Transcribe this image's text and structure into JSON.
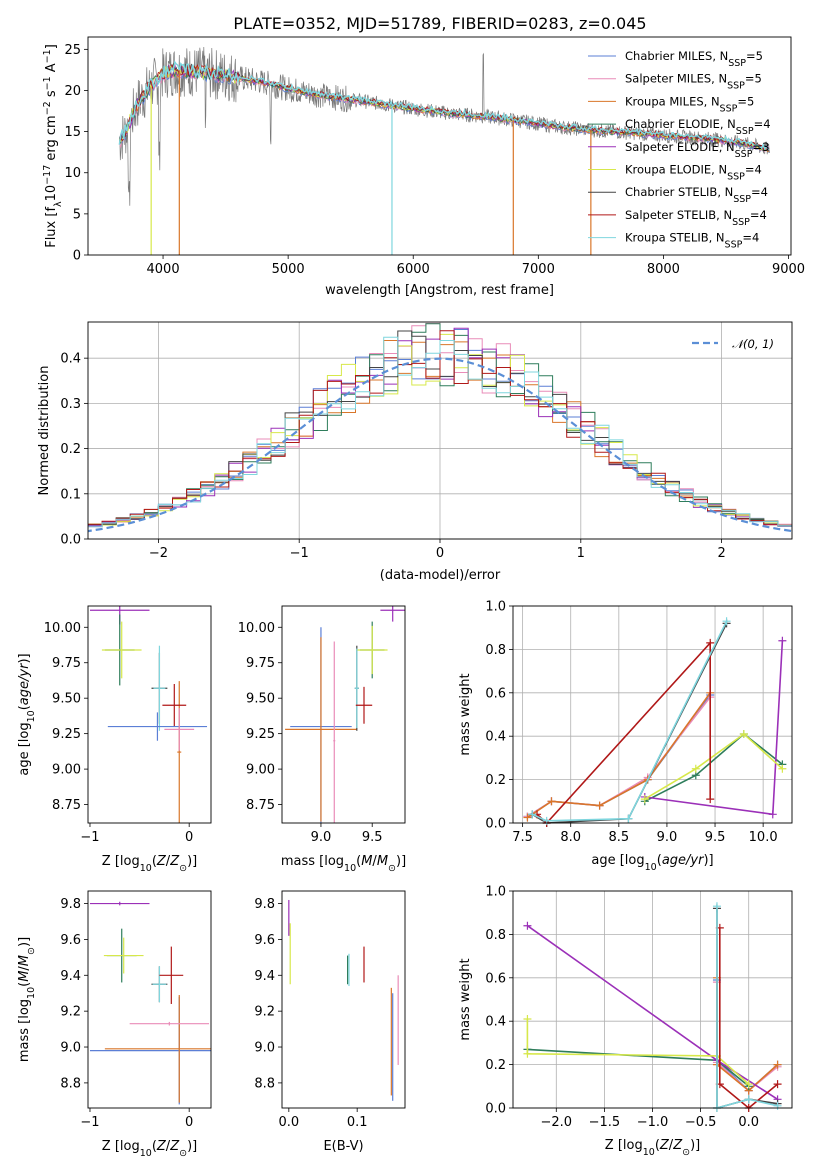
{
  "title": "PLATE=0352, MJD=51789, FIBERID=0283, z=0.045",
  "colors": {
    "chabrier_miles": "#5b7fd6",
    "salpeter_miles": "#e98cb8",
    "kroupa_miles": "#d9762a",
    "chabrier_elodie": "#2e7d5b",
    "salpeter_elodie": "#9b30b8",
    "kroupa_elodie": "#d7e84a",
    "chabrier_stelib": "#444444",
    "salpeter_stelib": "#b01818",
    "kroupa_stelib": "#7fd6de",
    "norm": "#5b8fd6"
  },
  "chart_data": [
    {
      "id": "spectrum",
      "type": "line",
      "xlabel": "wavelength [Angstrom, rest frame]",
      "ylabel_parts": [
        "Flux [f",
        "λ",
        "10",
        "−17",
        " erg cm",
        "−2",
        " s",
        "−1",
        " A",
        "−1",
        "]"
      ],
      "xlim": [
        3400,
        9020
      ],
      "ylim": [
        0,
        26.5
      ],
      "xticks": [
        4000,
        5000,
        6000,
        7000,
        8000,
        9000
      ],
      "yticks": [
        0,
        5,
        10,
        15,
        20,
        25
      ],
      "legend_position": "top-right",
      "continuum_x": [
        3650,
        3700,
        3800,
        3900,
        4000,
        4100,
        4300,
        4500,
        4800,
        5000,
        5300,
        5600,
        6000,
        6300,
        6600,
        6900,
        7200,
        7500,
        7800,
        8100,
        8400,
        8700,
        8850
      ],
      "continuum_y": [
        13.8,
        15.0,
        18.5,
        20.5,
        22.0,
        22.5,
        22.2,
        21.8,
        21.0,
        20.2,
        19.3,
        18.7,
        17.8,
        17.2,
        16.8,
        16.2,
        15.5,
        15.1,
        14.8,
        14.4,
        14.1,
        13.4,
        12.8
      ],
      "series": [
        {
          "legend": [
            "Chabrier MILES, N",
            "SSP",
            "=5"
          ],
          "color_key": "chabrier_miles"
        },
        {
          "legend": [
            "Salpeter MILES, N",
            "SSP",
            "=5"
          ],
          "color_key": "salpeter_miles"
        },
        {
          "legend": [
            "Kroupa MILES, N",
            "SSP",
            "=5"
          ],
          "color_key": "kroupa_miles"
        },
        {
          "legend": [
            "Chabrier ELODIE, N",
            "SSP",
            "=4"
          ],
          "color_key": "chabrier_elodie"
        },
        {
          "legend": [
            "Salpeter ELODIE, N",
            "SSP",
            "=3"
          ],
          "color_key": "salpeter_elodie"
        },
        {
          "legend": [
            "Kroupa ELODIE, N",
            "SSP",
            "=4"
          ],
          "color_key": "kroupa_elodie"
        },
        {
          "legend": [
            "Chabrier STELIB, N",
            "SSP",
            "=4"
          ],
          "color_key": "chabrier_stelib"
        },
        {
          "legend": [
            "Salpeter STELIB, N",
            "SSP",
            "=4"
          ],
          "color_key": "salpeter_stelib"
        },
        {
          "legend": [
            "Kroupa STELIB, N",
            "SSP",
            "=4"
          ],
          "color_key": "kroupa_stelib"
        }
      ],
      "drops": [
        {
          "x": 3905,
          "color_key": "kroupa_elodie"
        },
        {
          "x": 4130,
          "color_key": "kroupa_miles"
        },
        {
          "x": 5830,
          "color_key": "kroupa_stelib"
        },
        {
          "x": 6800,
          "color_key": "kroupa_miles"
        },
        {
          "x": 7420,
          "color_key": "kroupa_miles"
        }
      ]
    },
    {
      "id": "residuals",
      "type": "line",
      "xlabel": "(data-model)/error",
      "ylabel": "Normed distribution",
      "xlim": [
        -2.5,
        2.5
      ],
      "ylim": [
        0,
        0.48
      ],
      "xticks": [
        -2,
        -1,
        0,
        1,
        2
      ],
      "yticks": [
        0.0,
        0.1,
        0.2,
        0.3,
        0.4
      ],
      "grid": true,
      "legend_position": "top-right",
      "legend_label": "𝒩(0, 1)",
      "bin_width": 0.1,
      "histogram_color_keys": [
        "chabrier_miles",
        "salpeter_miles",
        "kroupa_miles",
        "chabrier_elodie",
        "salpeter_elodie",
        "kroupa_elodie",
        "chabrier_stelib",
        "salpeter_stelib",
        "kroupa_stelib"
      ]
    },
    {
      "id": "age_vs_Z",
      "type": "scatter",
      "xlabel": "Z [log10(Z/Z⊙)]",
      "ylabel": "age [log10(age/yr)]",
      "xlim": [
        -1.02,
        0.22
      ],
      "ylim": [
        8.62,
        10.15
      ],
      "xticks": [
        -1,
        0
      ],
      "yticks": [
        8.75,
        9.0,
        9.25,
        9.5,
        9.75,
        10.0
      ],
      "points": [
        {
          "x": -0.7,
          "y": 10.12,
          "xerr": 0.3,
          "yerr": 0.1,
          "color_key": "salpeter_elodie"
        },
        {
          "x": -0.1,
          "y": 9.12,
          "xerr": 0.02,
          "yerr": 0.5,
          "color_key": "kroupa_miles"
        },
        {
          "x": -0.7,
          "y": 9.84,
          "xerr": 0.15,
          "yerr": 0.25,
          "color_key": "chabrier_elodie"
        },
        {
          "x": -0.68,
          "y": 9.84,
          "xerr": 0.2,
          "yerr": 0.2,
          "color_key": "kroupa_elodie"
        },
        {
          "x": -0.3,
          "y": 9.57,
          "xerr": 0.08,
          "yerr": 0.25,
          "color_key": "chabrier_stelib"
        },
        {
          "x": -0.3,
          "y": 9.57,
          "xerr": 0.06,
          "yerr": 0.3,
          "color_key": "kroupa_stelib"
        },
        {
          "x": -0.15,
          "y": 9.45,
          "xerr": 0.12,
          "yerr": 0.15,
          "color_key": "salpeter_stelib"
        },
        {
          "x": -0.32,
          "y": 9.3,
          "xerr": 0.5,
          "yerr": 0.1,
          "color_key": "chabrier_miles"
        },
        {
          "x": -0.1,
          "y": 9.28,
          "xerr": 0.15,
          "yerr": 0.15,
          "color_key": "salpeter_miles"
        }
      ]
    },
    {
      "id": "age_vs_mass",
      "type": "scatter",
      "xlabel": "mass [log10(M/M⊙)]",
      "ylabel": "",
      "xlim": [
        8.62,
        9.82
      ],
      "ylim": [
        8.62,
        10.15
      ],
      "xticks": [
        9.0,
        9.5
      ],
      "yticks": [
        8.75,
        9.0,
        9.25,
        9.5,
        9.75,
        10.0
      ],
      "points": [
        {
          "x": 9.7,
          "y": 10.12,
          "xerr": 0.12,
          "yerr": 0.08,
          "color_key": "salpeter_elodie"
        },
        {
          "x": 9.0,
          "y": 9.3,
          "xerr": 0.3,
          "yerr": 0.7,
          "color_key": "chabrier_miles"
        },
        {
          "x": 9.0,
          "y": 9.28,
          "xerr": 0.35,
          "yerr": 0.65,
          "color_key": "kroupa_miles"
        },
        {
          "x": 9.13,
          "y": 9.2,
          "xerr": 0.01,
          "yerr": 0.7,
          "color_key": "salpeter_miles"
        },
        {
          "x": 9.5,
          "y": 9.84,
          "xerr": 0.12,
          "yerr": 0.2,
          "color_key": "chabrier_elodie"
        },
        {
          "x": 9.5,
          "y": 9.84,
          "xerr": 0.15,
          "yerr": 0.17,
          "color_key": "kroupa_elodie"
        },
        {
          "x": 9.35,
          "y": 9.57,
          "xerr": 0.02,
          "yerr": 0.3,
          "color_key": "chabrier_stelib"
        },
        {
          "x": 9.35,
          "y": 9.57,
          "xerr": 0.02,
          "yerr": 0.28,
          "color_key": "kroupa_stelib"
        },
        {
          "x": 9.42,
          "y": 9.45,
          "xerr": 0.08,
          "yerr": 0.13,
          "color_key": "salpeter_stelib"
        }
      ]
    },
    {
      "id": "weight_vs_age",
      "type": "line",
      "xlabel": "age [log10(age/yr)]",
      "ylabel": "mass weight",
      "xlim": [
        7.4,
        10.3
      ],
      "ylim": [
        0,
        1.0
      ],
      "xticks": [
        7.5,
        8.0,
        8.5,
        9.0,
        9.5,
        10.0
      ],
      "yticks": [
        0.0,
        0.2,
        0.4,
        0.6,
        0.8,
        1.0
      ],
      "grid": true,
      "series": [
        {
          "color_key": "chabrier_miles",
          "x": [
            7.55,
            7.8,
            8.3,
            8.8,
            9.45
          ],
          "y": [
            0.03,
            0.1,
            0.08,
            0.2,
            0.59
          ]
        },
        {
          "color_key": "salpeter_miles",
          "x": [
            7.55,
            7.8,
            8.3,
            8.8,
            9.45
          ],
          "y": [
            0.03,
            0.1,
            0.08,
            0.21,
            0.58
          ]
        },
        {
          "color_key": "kroupa_miles",
          "x": [
            7.55,
            7.8,
            8.3,
            8.8,
            9.45
          ],
          "y": [
            0.025,
            0.1,
            0.08,
            0.2,
            0.6
          ]
        },
        {
          "color_key": "chabrier_elodie",
          "x": [
            8.77,
            9.3,
            9.8,
            10.2
          ],
          "y": [
            0.1,
            0.22,
            0.41,
            0.27
          ]
        },
        {
          "color_key": "salpeter_elodie",
          "x": [
            8.77,
            10.1,
            10.2
          ],
          "y": [
            0.12,
            0.04,
            0.84
          ]
        },
        {
          "color_key": "kroupa_elodie",
          "x": [
            8.77,
            9.3,
            9.8,
            10.2
          ],
          "y": [
            0.11,
            0.25,
            0.41,
            0.25
          ]
        },
        {
          "color_key": "chabrier_stelib",
          "x": [
            7.6,
            7.75,
            8.6,
            9.62
          ],
          "y": [
            0.04,
            0.0,
            0.02,
            0.92
          ]
        },
        {
          "color_key": "salpeter_stelib",
          "x": [
            7.65,
            7.75,
            9.45,
            9.45
          ],
          "y": [
            0.04,
            0.0,
            0.83,
            0.11
          ]
        },
        {
          "color_key": "kroupa_stelib",
          "x": [
            7.6,
            7.75,
            8.6,
            9.62
          ],
          "y": [
            0.04,
            0.01,
            0.02,
            0.93
          ]
        }
      ]
    },
    {
      "id": "mass_vs_Z",
      "type": "scatter",
      "xlabel": "Z [log10(Z/Z⊙)]",
      "ylabel": "mass [log10(M/M⊙)]",
      "xlim": [
        -1.02,
        0.22
      ],
      "ylim": [
        8.66,
        9.87
      ],
      "xticks": [
        -1,
        0
      ],
      "yticks": [
        8.8,
        9.0,
        9.2,
        9.4,
        9.6,
        9.8
      ],
      "points": [
        {
          "x": -0.7,
          "y": 9.8,
          "xerr": 0.3,
          "yerr": 0.01,
          "color_key": "salpeter_elodie"
        },
        {
          "x": -0.68,
          "y": 9.51,
          "xerr": 0.15,
          "yerr": 0.15,
          "color_key": "chabrier_elodie"
        },
        {
          "x": -0.66,
          "y": 9.51,
          "xerr": 0.2,
          "yerr": 0.1,
          "color_key": "kroupa_elodie"
        },
        {
          "x": -0.3,
          "y": 9.35,
          "xerr": 0.08,
          "yerr": 0.1,
          "color_key": "chabrier_stelib"
        },
        {
          "x": -0.3,
          "y": 9.35,
          "xerr": 0.07,
          "yerr": 0.1,
          "color_key": "kroupa_stelib"
        },
        {
          "x": -0.18,
          "y": 9.4,
          "xerr": 0.12,
          "yerr": 0.16,
          "color_key": "salpeter_stelib"
        },
        {
          "x": -0.1,
          "y": 8.98,
          "xerr": 0.9,
          "yerr": 0.3,
          "color_key": "chabrier_miles"
        },
        {
          "x": -0.1,
          "y": 8.99,
          "xerr": 0.75,
          "yerr": 0.3,
          "color_key": "kroupa_miles"
        },
        {
          "x": -0.2,
          "y": 9.13,
          "xerr": 0.4,
          "yerr": 0.01,
          "color_key": "salpeter_miles"
        }
      ]
    },
    {
      "id": "mass_vs_ebv",
      "type": "scatter",
      "xlabel": "E(B-V)",
      "ylabel": "",
      "xlim": [
        -0.01,
        0.17
      ],
      "ylim": [
        8.66,
        9.87
      ],
      "xticks": [
        0.0,
        0.1
      ],
      "yticks": [
        8.8,
        9.0,
        9.2,
        9.4,
        9.6,
        9.8
      ],
      "points": [
        {
          "x": 0.0,
          "y": 9.72,
          "xerr": 0.0,
          "yerr": 0.1,
          "color_key": "salpeter_elodie"
        },
        {
          "x": 0.002,
          "y": 9.52,
          "xerr": 0.0,
          "yerr": 0.17,
          "color_key": "kroupa_elodie"
        },
        {
          "x": 0.086,
          "y": 9.43,
          "xerr": 0.0,
          "yerr": 0.08,
          "color_key": "chabrier_elodie"
        },
        {
          "x": 0.088,
          "y": 9.43,
          "xerr": 0.0,
          "yerr": 0.09,
          "color_key": "kroupa_stelib"
        },
        {
          "x": 0.11,
          "y": 9.46,
          "xerr": 0.0,
          "yerr": 0.1,
          "color_key": "salpeter_stelib"
        },
        {
          "x": 0.15,
          "y": 9.03,
          "xerr": 0.0,
          "yerr": 0.3,
          "color_key": "kroupa_miles"
        },
        {
          "x": 0.152,
          "y": 9.0,
          "xerr": 0.0,
          "yerr": 0.3,
          "color_key": "chabrier_miles"
        },
        {
          "x": 0.16,
          "y": 9.15,
          "xerr": 0.0,
          "yerr": 0.25,
          "color_key": "salpeter_miles"
        }
      ]
    },
    {
      "id": "weight_vs_Z",
      "type": "line",
      "xlabel": "Z [log10(Z/Z⊙)]",
      "ylabel": "mass weight",
      "xlim": [
        -2.45,
        0.45
      ],
      "ylim": [
        0,
        1.0
      ],
      "xticks": [
        -2.0,
        -1.5,
        -1.0,
        -0.5,
        0.0
      ],
      "yticks": [
        0.0,
        0.2,
        0.4,
        0.6,
        0.8,
        1.0
      ],
      "grid": true,
      "series": [
        {
          "color_key": "chabrier_miles",
          "x": [
            -0.33,
            -0.33,
            0.0,
            0.3
          ],
          "y": [
            0.59,
            0.22,
            0.08,
            0.2
          ]
        },
        {
          "color_key": "salpeter_miles",
          "x": [
            -0.33,
            -0.33,
            0.0,
            0.3
          ],
          "y": [
            0.58,
            0.21,
            0.08,
            0.19
          ]
        },
        {
          "color_key": "kroupa_miles",
          "x": [
            -0.33,
            -0.33,
            0.0,
            0.3
          ],
          "y": [
            0.6,
            0.2,
            0.08,
            0.2
          ]
        },
        {
          "color_key": "chabrier_elodie",
          "x": [
            -2.3,
            -0.33,
            0.0
          ],
          "y": [
            0.27,
            0.22,
            0.1
          ]
        },
        {
          "color_key": "salpeter_elodie",
          "x": [
            -2.3,
            -0.33,
            0.3
          ],
          "y": [
            0.84,
            0.22,
            0.04
          ]
        },
        {
          "color_key": "kroupa_elodie",
          "x": [
            -2.3,
            -2.3,
            -0.33,
            0.0
          ],
          "y": [
            0.41,
            0.25,
            0.24,
            0.11
          ]
        },
        {
          "color_key": "chabrier_stelib",
          "x": [
            -0.33,
            -0.33,
            0.0,
            0.3
          ],
          "y": [
            0.92,
            0.0,
            0.04,
            0.02
          ]
        },
        {
          "color_key": "salpeter_stelib",
          "x": [
            -0.3,
            -0.3,
            0.0,
            0.3
          ],
          "y": [
            0.83,
            0.11,
            0.0,
            0.11
          ]
        },
        {
          "color_key": "kroupa_stelib",
          "x": [
            -0.33,
            -0.33,
            0.0,
            0.3
          ],
          "y": [
            0.93,
            0.0,
            0.04,
            0.01
          ]
        }
      ]
    }
  ]
}
